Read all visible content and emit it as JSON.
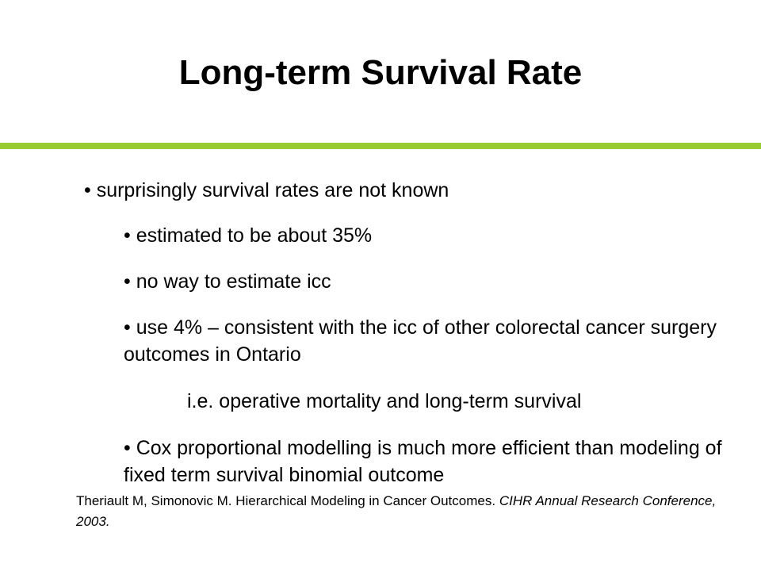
{
  "slide": {
    "title": "Long-term Survival Rate",
    "accent_color": "#99cc33",
    "bullets": [
      "• surprisingly survival rates are not known",
      "• estimated to be about 35%",
      "• no way to estimate icc",
      "• use 4% – consistent with the icc of other colorectal cancer surgery outcomes in Ontario",
      "i.e. operative mortality and long-term survival",
      "• Cox proportional modelling is much more efficient than modeling of fixed term survival binomial outcome"
    ],
    "citation": {
      "authors_title": "Theriault M, Simonovic M. Hierarchical Modeling in Cancer Outcomes.  ",
      "venue": "CIHR Annual Research Conference, 2003."
    }
  }
}
